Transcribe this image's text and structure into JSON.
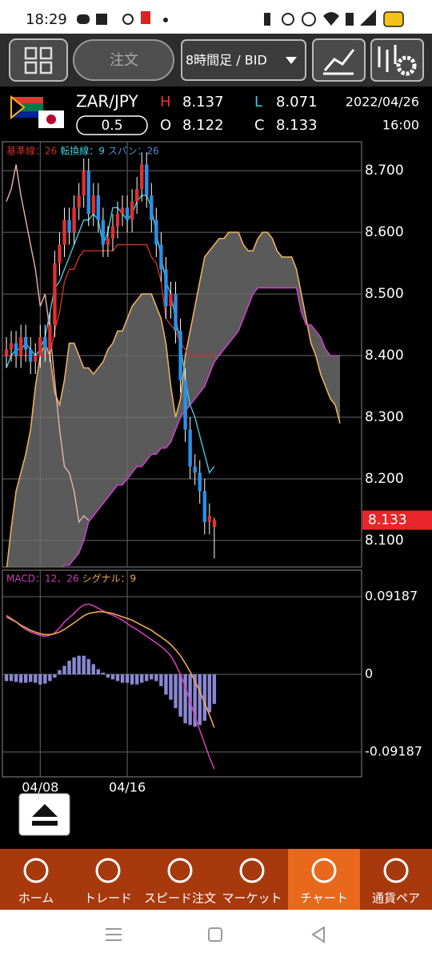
{
  "status_bar": {
    "time": "18:29"
  },
  "toolbar": {
    "order_button": "注文",
    "timeframe": "8時間足 / BID"
  },
  "header": {
    "symbol": "ZAR/JPY",
    "lot": "0.5",
    "high_label": "H",
    "high": "8.137",
    "low_label": "L",
    "low": "8.071",
    "open_label": "O",
    "open": "8.122",
    "close_label": "C",
    "close": "8.133",
    "date": "2022/04/26",
    "time": "16:00"
  },
  "chart_data": [
    {
      "type": "candlestick",
      "up_color": "#e03030",
      "down_color": "#2e8fe6",
      "grid": true,
      "categories": [
        null,
        null,
        null,
        null,
        null,
        null,
        null,
        "04/08",
        null,
        null,
        null,
        null,
        null,
        null,
        null,
        null,
        null,
        null,
        null,
        null,
        null,
        null,
        null,
        null,
        null,
        "04/16",
        null,
        null,
        null,
        null,
        null,
        null,
        null,
        null,
        null,
        null,
        null,
        null,
        null,
        null,
        null,
        null,
        null,
        null
      ],
      "open": [
        8.4,
        8.41,
        8.42,
        8.4,
        8.43,
        8.41,
        8.39,
        8.4,
        8.43,
        8.41,
        8.45,
        8.55,
        8.58,
        8.62,
        8.6,
        8.64,
        8.66,
        8.7,
        8.63,
        8.66,
        8.62,
        8.58,
        8.59,
        8.61,
        8.63,
        8.64,
        8.62,
        8.65,
        8.67,
        8.71,
        8.66,
        8.62,
        8.58,
        8.54,
        8.48,
        8.5,
        8.44,
        8.36,
        8.28,
        8.22,
        8.21,
        8.18,
        8.13,
        8.122
      ],
      "high": [
        8.43,
        8.44,
        8.44,
        8.45,
        8.45,
        8.43,
        8.42,
        8.45,
        8.45,
        8.47,
        8.57,
        8.6,
        8.64,
        8.64,
        8.66,
        8.68,
        8.72,
        8.72,
        8.68,
        8.68,
        8.64,
        8.61,
        8.63,
        8.65,
        8.66,
        8.66,
        8.67,
        8.69,
        8.73,
        8.73,
        8.68,
        8.64,
        8.6,
        8.56,
        8.52,
        8.52,
        8.46,
        8.38,
        8.3,
        8.24,
        8.23,
        8.2,
        8.16,
        8.137
      ],
      "low": [
        8.38,
        8.39,
        8.38,
        8.38,
        8.39,
        8.37,
        8.37,
        8.38,
        8.39,
        8.39,
        8.43,
        8.53,
        8.56,
        8.58,
        8.58,
        8.62,
        8.64,
        8.61,
        8.61,
        8.6,
        8.56,
        8.56,
        8.57,
        8.59,
        8.61,
        8.6,
        8.6,
        8.63,
        8.65,
        8.64,
        8.6,
        8.56,
        8.52,
        8.46,
        8.46,
        8.42,
        8.34,
        8.26,
        8.2,
        8.19,
        8.16,
        8.11,
        8.11,
        8.071
      ],
      "close": [
        8.41,
        8.42,
        8.4,
        8.43,
        8.41,
        8.39,
        8.4,
        8.43,
        8.41,
        8.45,
        8.55,
        8.58,
        8.62,
        8.6,
        8.64,
        8.66,
        8.7,
        8.63,
        8.66,
        8.62,
        8.58,
        8.59,
        8.61,
        8.63,
        8.64,
        8.62,
        8.65,
        8.67,
        8.71,
        8.66,
        8.62,
        8.58,
        8.54,
        8.48,
        8.5,
        8.44,
        8.36,
        8.28,
        8.22,
        8.21,
        8.18,
        8.13,
        8.14,
        8.133
      ],
      "series": [
        {
          "name": "基準線：26",
          "color": "#c83228",
          "values": [
            8.4,
            8.4,
            8.4,
            8.4,
            8.4,
            8.4,
            8.4,
            8.4,
            8.4,
            8.4,
            8.44,
            8.47,
            8.52,
            8.54,
            8.54,
            8.56,
            8.57,
            8.57,
            8.57,
            8.57,
            8.57,
            8.57,
            8.57,
            8.58,
            8.58,
            8.58,
            8.58,
            8.58,
            8.58,
            8.58,
            8.56,
            8.55,
            8.52,
            8.46,
            8.45,
            8.44,
            8.42,
            8.41,
            8.4,
            8.4,
            8.4,
            8.4,
            8.4,
            8.4
          ]
        },
        {
          "name": "転換線：9",
          "color": "#45c9d9",
          "values": [
            8.38,
            8.4,
            8.41,
            8.41,
            8.42,
            8.41,
            8.4,
            8.41,
            8.43,
            8.47,
            8.51,
            8.52,
            8.54,
            8.56,
            8.58,
            8.6,
            8.62,
            8.62,
            8.63,
            8.62,
            8.58,
            8.6,
            8.64,
            8.64,
            8.63,
            8.62,
            8.63,
            8.65,
            8.66,
            8.66,
            8.64,
            8.6,
            8.56,
            8.52,
            8.5,
            8.46,
            8.42,
            8.36,
            8.32,
            8.3,
            8.27,
            8.24,
            8.21,
            8.22
          ]
        },
        {
          "name": "スパン：26",
          "color": "#e6b4b4",
          "label_color": "#4a90d9",
          "values": [
            8.65,
            8.67,
            8.71,
            8.66,
            8.62,
            8.58,
            8.54,
            8.48,
            8.5,
            8.44,
            8.36,
            8.28,
            8.22,
            8.21,
            8.18,
            8.13,
            8.14,
            8.133,
            null,
            null,
            null,
            null,
            null,
            null,
            null,
            null,
            null,
            null,
            null,
            null,
            null,
            null,
            null,
            null,
            null,
            null,
            null,
            null,
            null,
            null,
            null,
            null,
            null,
            null
          ]
        }
      ],
      "span_a": {
        "color": "#e8b060",
        "values": [
          8.05,
          8.12,
          8.18,
          8.21,
          8.24,
          8.28,
          8.35,
          8.4,
          8.42,
          8.4,
          8.34,
          8.32,
          8.36,
          8.42,
          8.42,
          8.4,
          8.38,
          8.38,
          8.37,
          8.38,
          8.39,
          8.41,
          8.42,
          8.44,
          8.44,
          8.46,
          8.48,
          8.49,
          8.5,
          8.5,
          8.5,
          8.48,
          8.46,
          8.42,
          8.35,
          8.3,
          8.33,
          8.4,
          8.44,
          8.48,
          8.52,
          8.56,
          8.57,
          8.58,
          8.59,
          8.59,
          8.6,
          8.6,
          8.6,
          8.58,
          8.57,
          8.57,
          8.59,
          8.6,
          8.6,
          8.59,
          8.57,
          8.56,
          8.56,
          8.56,
          8.54,
          8.5,
          8.46,
          8.42,
          8.4,
          8.37,
          8.35,
          8.33,
          8.32,
          8.29
        ]
      },
      "span_b": {
        "color": "#c840c8",
        "values": [
          8.0,
          8.0,
          8.01,
          8.01,
          8.02,
          8.02,
          8.03,
          8.03,
          8.04,
          8.04,
          8.05,
          8.05,
          8.06,
          8.06,
          8.07,
          8.08,
          8.1,
          8.13,
          8.14,
          8.15,
          8.16,
          8.17,
          8.18,
          8.19,
          8.19,
          8.2,
          8.21,
          8.22,
          8.22,
          8.23,
          8.24,
          8.24,
          8.25,
          8.25,
          8.26,
          8.28,
          8.3,
          8.31,
          8.32,
          8.33,
          8.34,
          8.35,
          8.37,
          8.39,
          8.4,
          8.41,
          8.42,
          8.43,
          8.44,
          8.46,
          8.48,
          8.5,
          8.51,
          8.51,
          8.51,
          8.51,
          8.51,
          8.51,
          8.51,
          8.51,
          8.51,
          8.47,
          8.45,
          8.45,
          8.44,
          8.43,
          8.41,
          8.4,
          8.4,
          8.4
        ]
      },
      "cloud_color": "#707070",
      "ylim": [
        8.057,
        8.747
      ],
      "yticks": [
        {
          "value": 8.1,
          "label": "8.100"
        },
        {
          "value": 8.2,
          "label": "8.200"
        },
        {
          "value": 8.3,
          "label": "8.300"
        },
        {
          "value": 8.4,
          "label": "8.400"
        },
        {
          "value": 8.5,
          "label": "8.500"
        },
        {
          "value": 8.6,
          "label": "8.600"
        },
        {
          "value": 8.7,
          "label": "8.700"
        }
      ],
      "last_price": 8.133,
      "last_price_color": "#e8262b"
    },
    {
      "type": "macd",
      "grid": true,
      "series": [
        {
          "name": "MACD：12、26",
          "color": "#d23cb4",
          "values": [
            0.07,
            0.066,
            0.062,
            0.057,
            0.053,
            0.05,
            0.048,
            0.046,
            0.045,
            0.046,
            0.049,
            0.055,
            0.062,
            0.067,
            0.072,
            0.078,
            0.082,
            0.083,
            0.081,
            0.078,
            0.075,
            0.072,
            0.07,
            0.067,
            0.064,
            0.06,
            0.056,
            0.053,
            0.049,
            0.045,
            0.041,
            0.037,
            0.033,
            0.028,
            0.022,
            0.012,
            0.0,
            -0.015,
            -0.032,
            -0.05,
            -0.066,
            -0.082,
            -0.098,
            -0.112
          ]
        },
        {
          "name": "シグナル：9",
          "color": "#f0a850",
          "values": [
            0.068,
            0.065,
            0.062,
            0.058,
            0.055,
            0.052,
            0.05,
            0.048,
            0.047,
            0.047,
            0.048,
            0.05,
            0.053,
            0.057,
            0.061,
            0.065,
            0.069,
            0.072,
            0.073,
            0.074,
            0.074,
            0.073,
            0.072,
            0.07,
            0.068,
            0.066,
            0.064,
            0.061,
            0.058,
            0.055,
            0.052,
            0.048,
            0.044,
            0.04,
            0.035,
            0.029,
            0.022,
            0.013,
            0.003,
            -0.008,
            -0.02,
            -0.034,
            -0.048,
            -0.063
          ]
        }
      ],
      "histogram": {
        "color": "#8a88d2",
        "values": [
          -0.008,
          -0.008,
          -0.009,
          -0.01,
          -0.01,
          -0.009,
          -0.01,
          -0.012,
          -0.011,
          -0.008,
          -0.004,
          0.005,
          0.01,
          0.016,
          0.02,
          0.022,
          0.022,
          0.018,
          0.012,
          0.006,
          0.002,
          -0.004,
          -0.006,
          -0.008,
          -0.01,
          -0.01,
          -0.012,
          -0.012,
          -0.01,
          -0.008,
          -0.006,
          -0.008,
          -0.014,
          -0.024,
          -0.03,
          -0.04,
          -0.05,
          -0.058,
          -0.06,
          -0.062,
          -0.06,
          -0.055,
          -0.045,
          -0.035
        ]
      },
      "ylim": [
        -0.1212,
        0.1231
      ],
      "yticks": [
        0.09187,
        0,
        -0.09187
      ]
    }
  ],
  "nav": {
    "items": [
      "ホーム",
      "トレード",
      "スピード注文",
      "マーケット",
      "チャート",
      "通貨ペア"
    ],
    "active": 4
  }
}
